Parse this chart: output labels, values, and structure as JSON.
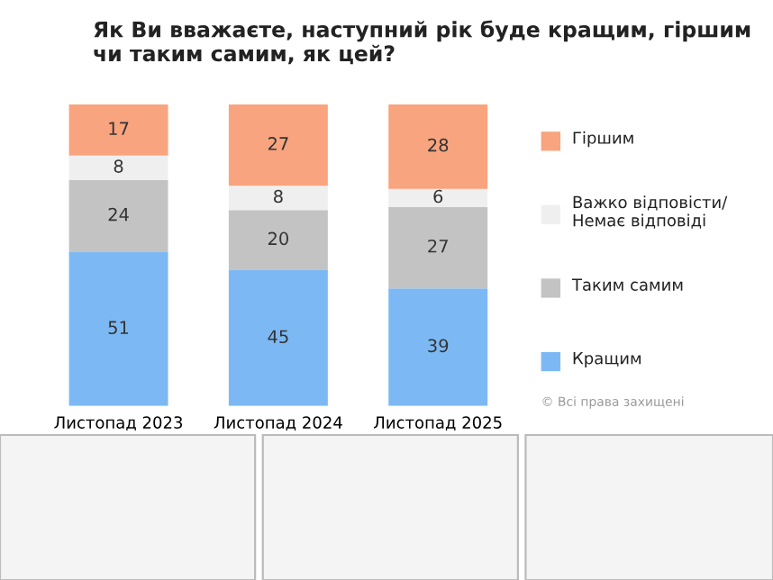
{
  "chart_data": {
    "type": "bar",
    "stacked": true,
    "title": "Як Ви вважаєте, наступний рік буде кращим, гіршим чи таким самим, як цей?",
    "categories": [
      "Листопад 2023",
      "Листопад 2024",
      "Листопад 2025"
    ],
    "series": [
      {
        "name": "Кращим",
        "color": "#7cb9f4",
        "values": [
          51,
          45,
          39
        ]
      },
      {
        "name": "Таким самим",
        "color": "#c3c3c3",
        "values": [
          24,
          20,
          27
        ]
      },
      {
        "name": "Важко відповісти/ Немає відповіді",
        "color": "#efefef",
        "values": [
          8,
          8,
          6
        ]
      },
      {
        "name": "Гіршим",
        "color": "#f8a47f",
        "values": [
          17,
          27,
          28
        ]
      }
    ],
    "data_labels": true,
    "legend": "right",
    "grid": false,
    "annotations": [
      "© Всі права захищені"
    ]
  }
}
